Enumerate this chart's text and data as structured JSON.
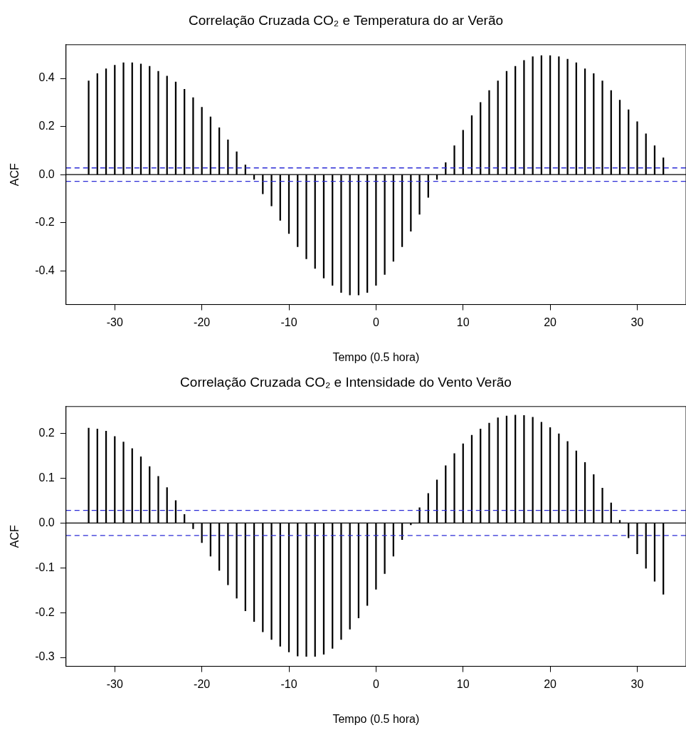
{
  "chart_data": [
    {
      "type": "bar",
      "title": "Correlação Cruzada CO₂ e Temperatura do ar Verão",
      "xlabel": "Tempo (0.5 hora)",
      "ylabel": "ACF",
      "x": [
        -33,
        -32,
        -31,
        -30,
        -29,
        -28,
        -27,
        -26,
        -25,
        -24,
        -23,
        -22,
        -21,
        -20,
        -19,
        -18,
        -17,
        -16,
        -15,
        -14,
        -13,
        -12,
        -11,
        -10,
        -9,
        -8,
        -7,
        -6,
        -5,
        -4,
        -3,
        -2,
        -1,
        0,
        1,
        2,
        3,
        4,
        5,
        6,
        7,
        8,
        9,
        10,
        11,
        12,
        13,
        14,
        15,
        16,
        17,
        18,
        19,
        20,
        21,
        22,
        23,
        24,
        25,
        26,
        27,
        28,
        29,
        30,
        31,
        32,
        33
      ],
      "series": [
        {
          "color": "#000000",
          "values": [
            0.39,
            0.42,
            0.44,
            0.455,
            0.465,
            0.465,
            0.46,
            0.45,
            0.43,
            0.41,
            0.385,
            0.355,
            0.32,
            0.28,
            0.24,
            0.195,
            0.145,
            0.095,
            0.04,
            -0.02,
            -0.08,
            -0.13,
            -0.19,
            -0.245,
            -0.3,
            -0.35,
            -0.39,
            -0.43,
            -0.46,
            -0.49,
            -0.5,
            -0.5,
            -0.49,
            -0.46,
            -0.415,
            -0.36,
            -0.3,
            -0.235,
            -0.165,
            -0.095,
            -0.02,
            0.05,
            0.12,
            0.185,
            0.245,
            0.3,
            0.35,
            0.39,
            0.43,
            0.45,
            0.475,
            0.49,
            0.495,
            0.495,
            0.49,
            0.48,
            0.465,
            0.44,
            0.42,
            0.39,
            0.35,
            0.31,
            0.27,
            0.22,
            0.17,
            0.12,
            0.07
          ]
        }
      ],
      "xlim": [
        -35.6,
        35.6
      ],
      "xticks": [
        -30,
        -20,
        -10,
        0,
        10,
        20,
        30
      ],
      "ylim": [
        -0.54,
        0.54
      ],
      "yticks": [
        {
          "value": -0.4,
          "label": "-0.4"
        },
        {
          "value": -0.2,
          "label": "-0.2"
        },
        {
          "value": 0,
          "label": "0.0"
        },
        {
          "value": 0.2,
          "label": "0.2"
        },
        {
          "value": 0.4,
          "label": "0.4"
        }
      ],
      "ref_lines": [
        {
          "axis": "y",
          "value": 0,
          "color": "#000000",
          "line_style": "solid"
        },
        {
          "axis": "y",
          "value": 0.028,
          "color": "#2b2bd6",
          "line_style": "dashed"
        },
        {
          "axis": "y",
          "value": -0.028,
          "color": "#2b2bd6",
          "line_style": "dashed"
        }
      ],
      "grid": false,
      "legend": false
    },
    {
      "type": "bar",
      "title": "Correlação Cruzada CO₂ e Intensidade do Vento Verão",
      "xlabel": "Tempo (0.5 hora)",
      "ylabel": "ACF",
      "x": [
        -33,
        -32,
        -31,
        -30,
        -29,
        -28,
        -27,
        -26,
        -25,
        -24,
        -23,
        -22,
        -21,
        -20,
        -19,
        -18,
        -17,
        -16,
        -15,
        -14,
        -13,
        -12,
        -11,
        -10,
        -9,
        -8,
        -7,
        -6,
        -5,
        -4,
        -3,
        -2,
        -1,
        0,
        1,
        2,
        3,
        4,
        5,
        6,
        7,
        8,
        9,
        10,
        11,
        12,
        13,
        14,
        15,
        16,
        17,
        18,
        19,
        20,
        21,
        22,
        23,
        24,
        25,
        26,
        27,
        28,
        29,
        30,
        31,
        32,
        33
      ],
      "series": [
        {
          "color": "#000000",
          "values": [
            0.212,
            0.21,
            0.205,
            0.193,
            0.181,
            0.166,
            0.148,
            0.126,
            0.104,
            0.079,
            0.05,
            0.019,
            -0.013,
            -0.044,
            -0.074,
            -0.106,
            -0.138,
            -0.168,
            -0.196,
            -0.22,
            -0.243,
            -0.26,
            -0.275,
            -0.288,
            -0.297,
            -0.298,
            -0.298,
            -0.293,
            -0.28,
            -0.26,
            -0.237,
            -0.212,
            -0.184,
            -0.148,
            -0.113,
            -0.074,
            -0.037,
            -0.004,
            0.034,
            0.066,
            0.096,
            0.128,
            0.155,
            0.177,
            0.196,
            0.21,
            0.223,
            0.235,
            0.239,
            0.241,
            0.24,
            0.236,
            0.225,
            0.213,
            0.199,
            0.182,
            0.161,
            0.135,
            0.108,
            0.078,
            0.045,
            0.006,
            -0.033,
            -0.069,
            -0.101,
            -0.13,
            -0.159
          ]
        }
      ],
      "xlim": [
        -35.6,
        35.6
      ],
      "xticks": [
        -30,
        -20,
        -10,
        0,
        10,
        20,
        30
      ],
      "ylim": [
        -0.32,
        0.26
      ],
      "yticks": [
        {
          "value": -0.3,
          "label": "-0.3"
        },
        {
          "value": -0.2,
          "label": "-0.2"
        },
        {
          "value": -0.1,
          "label": "-0.1"
        },
        {
          "value": 0,
          "label": "0.0"
        },
        {
          "value": 0.1,
          "label": "0.1"
        },
        {
          "value": 0.2,
          "label": "0.2"
        }
      ],
      "ref_lines": [
        {
          "axis": "y",
          "value": 0,
          "color": "#000000",
          "line_style": "solid"
        },
        {
          "axis": "y",
          "value": 0.028,
          "color": "#2b2bd6",
          "line_style": "dashed"
        },
        {
          "axis": "y",
          "value": -0.028,
          "color": "#2b2bd6",
          "line_style": "dashed"
        }
      ],
      "grid": false,
      "legend": false
    }
  ]
}
